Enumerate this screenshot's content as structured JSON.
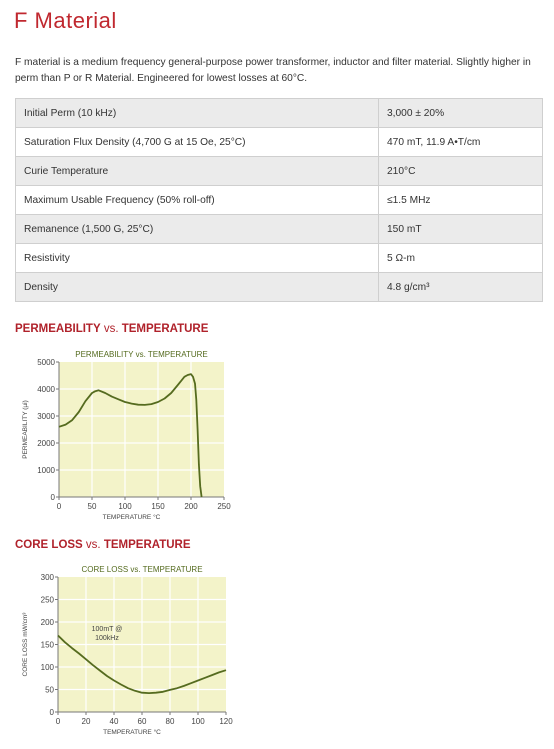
{
  "page": {
    "title": "F Material",
    "description": "F material is a medium frequency general-purpose power transformer, inductor and filter material. Slightly higher in perm than P or R Material. Engineered for lowest losses at 60°C."
  },
  "properties": [
    {
      "name": "Initial Perm (10 kHz)",
      "value": "3,000 ± 20%"
    },
    {
      "name": "Saturation Flux Density (4,700 G at 15 Oe, 25°C)",
      "value": "470 mT, 11.9 A•T/cm"
    },
    {
      "name": "Curie Temperature",
      "value": "210°C"
    },
    {
      "name": "Maximum Usable Frequency (50% roll-off)",
      "value": "≤1.5 MHz"
    },
    {
      "name": "Remanence (1,500 G, 25°C)",
      "value": "150 mT"
    },
    {
      "name": "Resistivity",
      "value": "5 Ω-m"
    },
    {
      "name": "Density",
      "value": "4.8 g/cm³"
    }
  ],
  "sections": {
    "perm_heading_a": "PERMEABILITY",
    "perm_heading_vs": " vs. ",
    "perm_heading_b": "TEMPERATURE",
    "loss_heading_a": "CORE LOSS",
    "loss_heading_vs": " vs. ",
    "loss_heading_b": "TEMPERATURE"
  },
  "colors": {
    "accent": "#c0282f",
    "plot_fill": "#f3f3c9",
    "curve": "#556b1f"
  },
  "chart_data": [
    {
      "type": "line",
      "title": "PERMEABILITY vs. TEMPERATURE",
      "xlabel": "TEMPERATURE °C",
      "ylabel": "PERMEABILITY (µi)",
      "xlim": [
        0,
        250
      ],
      "ylim": [
        0,
        5000
      ],
      "xticks": [
        "0",
        "50",
        "100",
        "150",
        "200",
        "250"
      ],
      "yticks": [
        "0",
        "1000",
        "2000",
        "3000",
        "4000",
        "5000"
      ],
      "x": [
        0,
        10,
        20,
        30,
        40,
        50,
        55,
        60,
        70,
        80,
        90,
        100,
        110,
        120,
        130,
        140,
        150,
        160,
        170,
        180,
        185,
        190,
        195,
        200,
        203,
        206,
        208,
        210,
        212,
        214,
        216
      ],
      "y": [
        2600,
        2680,
        2850,
        3150,
        3550,
        3850,
        3920,
        3950,
        3850,
        3720,
        3620,
        3520,
        3460,
        3420,
        3410,
        3440,
        3520,
        3650,
        3850,
        4150,
        4300,
        4450,
        4520,
        4550,
        4450,
        4200,
        3600,
        2500,
        1200,
        400,
        0
      ]
    },
    {
      "type": "line",
      "title": "CORE LOSS vs. TEMPERATURE",
      "xlabel": "TEMPERATURE °C",
      "ylabel": "CORE LOSS mW/cm³",
      "annotation": "100mT @ 100kHz",
      "xlim": [
        0,
        120
      ],
      "ylim": [
        0,
        300
      ],
      "xticks": [
        "0",
        "20",
        "40",
        "60",
        "80",
        "100",
        "120"
      ],
      "yticks": [
        "0",
        "50",
        "100",
        "150",
        "200",
        "250",
        "300"
      ],
      "x": [
        0,
        5,
        10,
        15,
        20,
        25,
        30,
        35,
        40,
        45,
        50,
        55,
        60,
        65,
        70,
        75,
        80,
        85,
        90,
        95,
        100,
        105,
        110,
        115,
        120
      ],
      "y": [
        170,
        155,
        142,
        130,
        117,
        104,
        92,
        80,
        70,
        61,
        53,
        47,
        43,
        42,
        43,
        45,
        49,
        53,
        58,
        64,
        70,
        76,
        82,
        88,
        93
      ]
    }
  ]
}
